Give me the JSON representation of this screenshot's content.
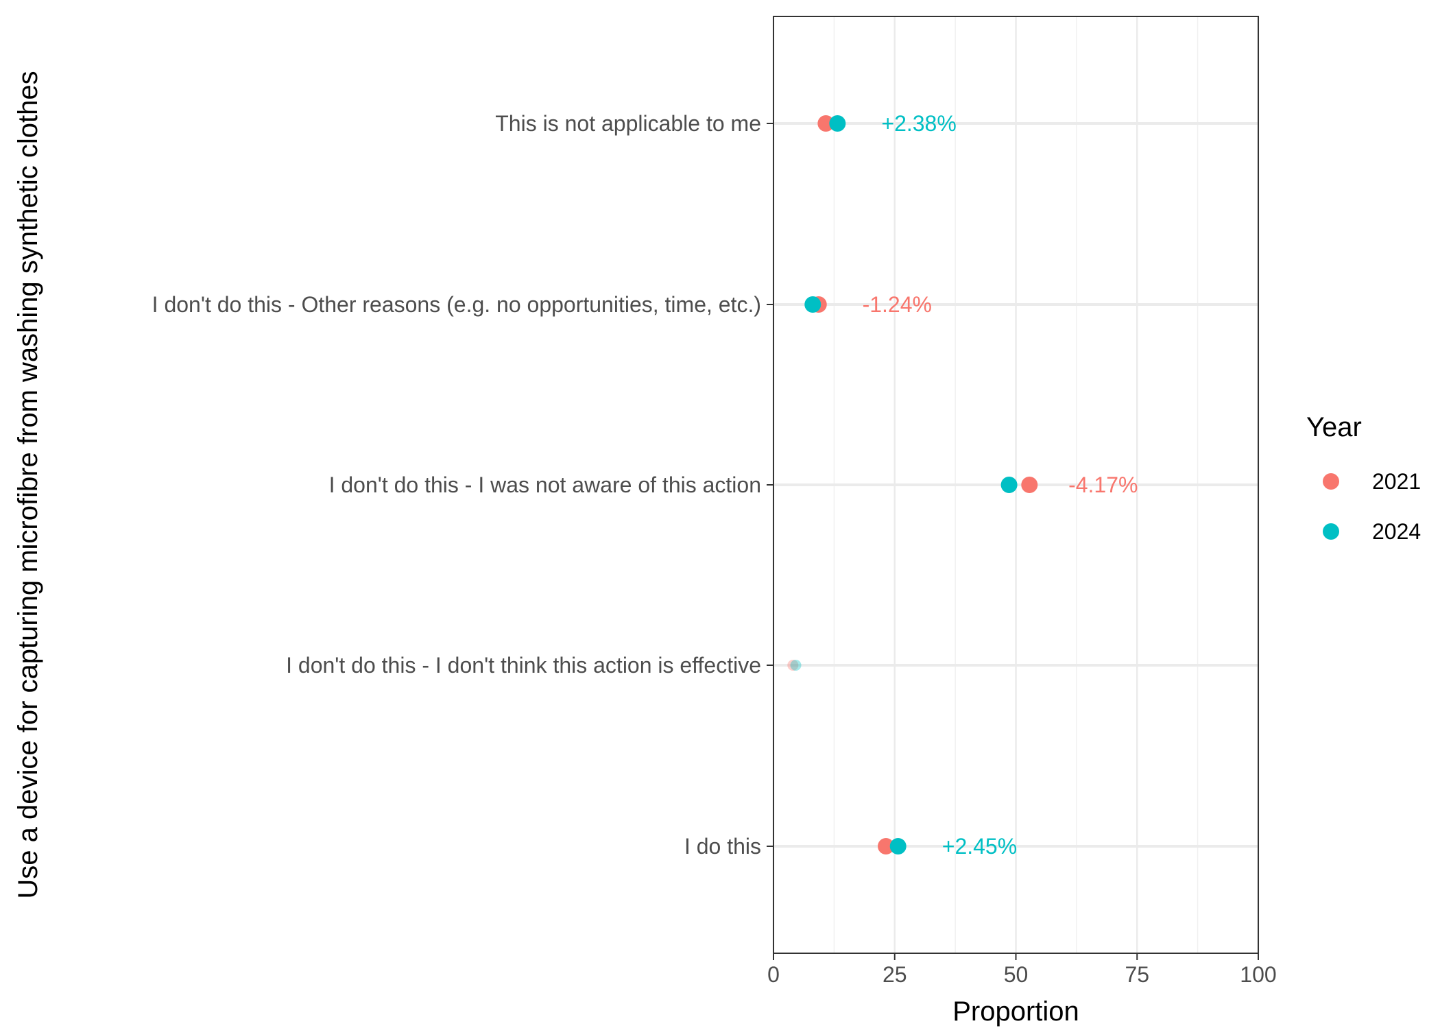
{
  "chart_data": {
    "type": "scatter",
    "xlabel": "Proportion",
    "ylabel": "Use a device for capturing microfibre from washing synthetic clothes",
    "xlim": [
      0,
      100
    ],
    "x_ticks": [
      "0",
      "25",
      "50",
      "75",
      "100"
    ],
    "grid": true,
    "categories": [
      "This is not applicable to me",
      "I don't do this - Other reasons (e.g. no opportunities, time, etc.)",
      "I don't do this - I was not aware of this action",
      "I don't do this - I don't think this action is effective",
      "I do this"
    ],
    "legend": {
      "title": "Year",
      "position": "right",
      "entries": [
        {
          "name": "2021",
          "color": "#F8766D"
        },
        {
          "name": "2024",
          "color": "#00BFC4"
        }
      ]
    },
    "series": [
      {
        "name": "2021",
        "color": "#F8766D",
        "values": [
          10.8,
          9.3,
          52.8,
          4.0,
          23.2
        ]
      },
      {
        "name": "2024",
        "color": "#00BFC4",
        "values": [
          13.2,
          8.1,
          48.6,
          4.6,
          25.7
        ]
      }
    ],
    "annotations": [
      {
        "category": "This is not applicable to me",
        "text": "+2.38%",
        "color": "#00BFC4",
        "x": 30
      },
      {
        "category": "I don't do this - Other reasons (e.g. no opportunities, time, etc.)",
        "text": "-1.24%",
        "color": "#F8766D",
        "x": 25.5
      },
      {
        "category": "I don't do this - I was not aware of this action",
        "text": "-4.17%",
        "color": "#F8766D",
        "x": 68
      },
      {
        "category": "I don't do this - I don't think this action is effective",
        "text": "",
        "color": "#F8766D",
        "x": 0
      },
      {
        "category": "I do this",
        "text": "+2.45%",
        "color": "#00BFC4",
        "x": 42.5
      }
    ],
    "faded_categories": [
      "I don't do this - I don't think this action is effective"
    ]
  }
}
